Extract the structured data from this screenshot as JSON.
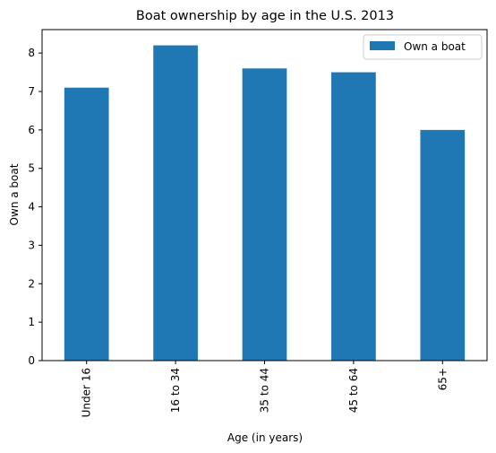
{
  "chart_data": {
    "type": "bar",
    "title": "Boat ownership by age in the U.S. 2013",
    "xlabel": "Age (in years)",
    "ylabel": "Own a boat",
    "categories": [
      "Under 16",
      "16 to 34",
      "35 to 44",
      "45 to 64",
      "65+"
    ],
    "series": [
      {
        "name": "Own a boat",
        "values": [
          7.1,
          8.2,
          7.6,
          7.5,
          6.0
        ],
        "color": "#1f77b4"
      }
    ],
    "ylim": [
      0,
      8.61
    ],
    "yticks": [
      0,
      1,
      2,
      3,
      4,
      5,
      6,
      7,
      8
    ],
    "grid": false,
    "legend_position": "top-right"
  }
}
